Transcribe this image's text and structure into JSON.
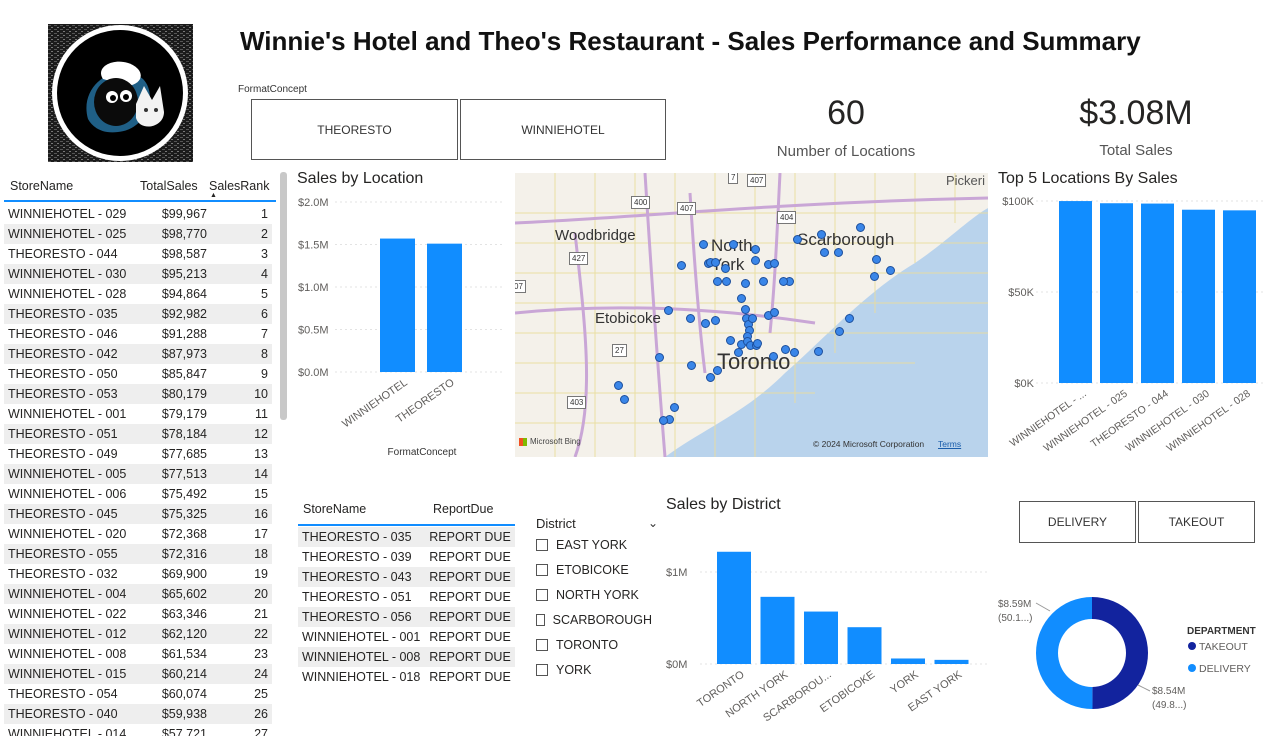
{
  "header": {
    "title": "Winnie's Hotel and Theo's Restaurant - Sales Performance and Summary"
  },
  "format_slicer": {
    "label": "FormatConcept",
    "options": [
      "THEORESTO",
      "WINNIEHOTEL"
    ]
  },
  "kpis": {
    "locations": {
      "value": "60",
      "label": "Number of Locations"
    },
    "sales": {
      "value": "$3.08M",
      "label": "Total Sales"
    }
  },
  "rank_table": {
    "headers": [
      "StoreName",
      "TotalSales",
      "SalesRank"
    ],
    "rows": [
      [
        "WINNIEHOTEL - 029",
        "$99,967",
        "1"
      ],
      [
        "WINNIEHOTEL - 025",
        "$98,770",
        "2"
      ],
      [
        "THEORESTO - 044",
        "$98,587",
        "3"
      ],
      [
        "WINNIEHOTEL - 030",
        "$95,213",
        "4"
      ],
      [
        "WINNIEHOTEL - 028",
        "$94,864",
        "5"
      ],
      [
        "THEORESTO - 035",
        "$92,982",
        "6"
      ],
      [
        "THEORESTO - 046",
        "$91,288",
        "7"
      ],
      [
        "THEORESTO - 042",
        "$87,973",
        "8"
      ],
      [
        "THEORESTO - 050",
        "$85,847",
        "9"
      ],
      [
        "THEORESTO - 053",
        "$80,179",
        "10"
      ],
      [
        "WINNIEHOTEL - 001",
        "$79,179",
        "11"
      ],
      [
        "THEORESTO - 051",
        "$78,184",
        "12"
      ],
      [
        "THEORESTO - 049",
        "$77,685",
        "13"
      ],
      [
        "WINNIEHOTEL - 005",
        "$77,513",
        "14"
      ],
      [
        "WINNIEHOTEL - 006",
        "$75,492",
        "15"
      ],
      [
        "THEORESTO - 045",
        "$75,325",
        "16"
      ],
      [
        "WINNIEHOTEL - 020",
        "$72,368",
        "17"
      ],
      [
        "THEORESTO - 055",
        "$72,316",
        "18"
      ],
      [
        "THEORESTO - 032",
        "$69,900",
        "19"
      ],
      [
        "WINNIEHOTEL - 004",
        "$65,602",
        "20"
      ],
      [
        "WINNIEHOTEL - 022",
        "$63,346",
        "21"
      ],
      [
        "WINNIEHOTEL - 012",
        "$62,120",
        "22"
      ],
      [
        "WINNIEHOTEL - 008",
        "$61,534",
        "23"
      ],
      [
        "WINNIEHOTEL - 015",
        "$60,214",
        "24"
      ],
      [
        "THEORESTO - 054",
        "$60,074",
        "25"
      ],
      [
        "THEORESTO - 040",
        "$59,938",
        "26"
      ],
      [
        "WINNIEHOTEL - 014",
        "$57,721",
        "27"
      ]
    ]
  },
  "report_table": {
    "headers": [
      "StoreName",
      "ReportDue"
    ],
    "rows": [
      [
        "THEORESTO - 035",
        "REPORT DUE"
      ],
      [
        "THEORESTO - 039",
        "REPORT DUE"
      ],
      [
        "THEORESTO - 043",
        "REPORT DUE"
      ],
      [
        "THEORESTO - 051",
        "REPORT DUE"
      ],
      [
        "THEORESTO - 056",
        "REPORT DUE"
      ],
      [
        "WINNIEHOTEL - 001",
        "REPORT DUE"
      ],
      [
        "WINNIEHOTEL - 008",
        "REPORT DUE"
      ],
      [
        "WINNIEHOTEL - 018",
        "REPORT DUE"
      ]
    ]
  },
  "district_slicer": {
    "label": "District",
    "options": [
      "EAST YORK",
      "ETOBICOKE",
      "NORTH YORK",
      "SCARBOROUGH",
      "TORONTO",
      "YORK"
    ]
  },
  "department_slicer": {
    "options": [
      "DELIVERY",
      "TAKEOUT"
    ]
  },
  "map": {
    "places": [
      "Woodbridge",
      "North York",
      "Scarborough",
      "Etobicoke",
      "Toronto",
      "Pickeri"
    ],
    "highways": [
      "7",
      "407",
      "400",
      "407",
      "404",
      "427",
      "27",
      "403",
      "07"
    ],
    "attribution": "Microsoft Bing",
    "copyright": "© 2024 Microsoft Corporation",
    "terms": "Terms",
    "pin_color": "#3a86e8"
  },
  "colors": {
    "accent": "#118dff",
    "dark": "#12239e",
    "text": "#252423",
    "grid": "#c8c8c8"
  },
  "chart_data": [
    {
      "type": "bar",
      "title": "Sales by Location",
      "xlabel": "FormatConcept",
      "ylabel": "",
      "categories": [
        "WINNIEHOTEL",
        "THEORESTO"
      ],
      "values": [
        1570000,
        1510000
      ],
      "ylim": [
        0,
        2000000
      ],
      "ticks": [
        "$0.0M",
        "$0.5M",
        "$1.0M",
        "$1.5M",
        "$2.0M"
      ]
    },
    {
      "type": "bar",
      "title": "Top 5 Locations By Sales",
      "xlabel": "",
      "ylabel": "",
      "categories": [
        "WINNIEHOTEL - ...",
        "WINNIEHOTEL - 025",
        "THEORESTO - 044",
        "WINNIEHOTEL - 030",
        "WINNIEHOTEL - 028"
      ],
      "values": [
        99967,
        98770,
        98587,
        95213,
        94864
      ],
      "ylim": [
        0,
        100000
      ],
      "ticks": [
        "$0K",
        "$50K",
        "$100K"
      ]
    },
    {
      "type": "bar",
      "title": "Sales by District",
      "xlabel": "",
      "ylabel": "",
      "categories": [
        "TORONTO",
        "NORTH YORK",
        "SCARBOROU...",
        "ETOBICOKE",
        "YORK",
        "EAST YORK"
      ],
      "values": [
        1220000,
        730000,
        570000,
        400000,
        60000,
        45000
      ],
      "ylim": [
        0,
        1250000
      ],
      "ticks": [
        "$0M",
        "$1M"
      ]
    },
    {
      "type": "pie",
      "title": "",
      "legend_title": "DEPARTMENT",
      "categories": [
        "TAKEOUT",
        "DELIVERY"
      ],
      "values": [
        8.54,
        8.59
      ],
      "labels": [
        [
          "$8.54M",
          "(49.8...)"
        ],
        [
          "$8.59M",
          "(50.1...)"
        ]
      ],
      "colors": [
        "#12239e",
        "#118dff"
      ]
    }
  ]
}
